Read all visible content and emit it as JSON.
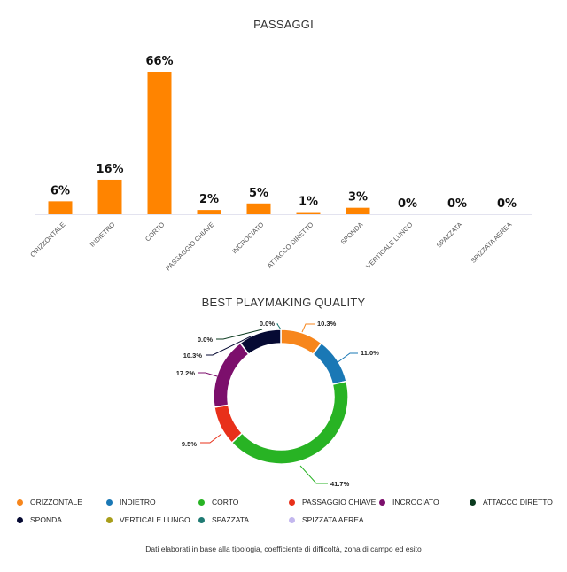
{
  "chart_data": [
    {
      "type": "bar",
      "title": "PASSAGGI",
      "categories": [
        "ORIZZONTALE",
        "INDIETRO",
        "CORTO",
        "PASSAGGIO CHIAVE",
        "INCROCIATO",
        "ATTACCO DIRETTO",
        "SPONDA",
        "VERTICALE LUNGO",
        "SPAZZATA",
        "SPIZZATA AEREA"
      ],
      "values": [
        6,
        16,
        66,
        2,
        5,
        1,
        3,
        0,
        0,
        0
      ],
      "data_labels": [
        "6%",
        "16%",
        "66%",
        "2%",
        "5%",
        "1%",
        "3%",
        "0%",
        "0%",
        "0%"
      ],
      "ylim": [
        0,
        70
      ],
      "color": "#ff8400",
      "grid": false
    },
    {
      "type": "pie",
      "title": "BEST PLAYMAKING QUALITY",
      "categories": [
        "ORIZZONTALE",
        "INDIETRO",
        "CORTO",
        "PASSAGGIO CHIAVE",
        "INCROCIATO",
        "ATTACCO DIRETTO",
        "SPONDA",
        "VERTICALE LUNGO",
        "SPAZZATA",
        "SPIZZATA AEREA"
      ],
      "values": [
        10.3,
        11.0,
        41.7,
        9.5,
        17.2,
        0.0,
        10.3,
        0.0,
        0.0,
        0.0
      ],
      "data_labels": [
        "10.3%",
        "11.0%",
        "41.7%",
        "9.5%",
        "17.2%",
        "0.0%",
        "10.3%",
        "0.0%",
        "0.0%",
        "0.0%"
      ],
      "colors": [
        "#f7861c",
        "#1a78b5",
        "#28b324",
        "#e8301a",
        "#7c0f6c",
        "#0a3a1e",
        "#060a33",
        "#a89e1a",
        "#1f7a73",
        "#c3b7ee"
      ],
      "donut": true,
      "legend_position": "bottom"
    }
  ],
  "footnote": "Dati elaborati in base alla tipologia, coefficiente di difficoltà, zona di campo ed esito"
}
